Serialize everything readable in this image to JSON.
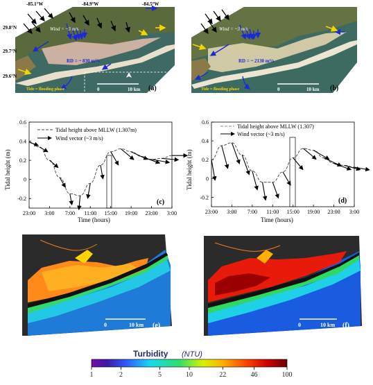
{
  "panels": {
    "a": {
      "label": "(a)",
      "lon_labels": [
        "-85.1°W",
        "-84.9°W",
        "-84.5°W"
      ],
      "lat_labels": [
        "29.8°N",
        "29.7°N",
        "29.6°N"
      ],
      "wind_text": "Wind = ~3 m/s",
      "rd_text": "RD = ~ 830 m³/s",
      "tide_text": "Tide = flooding phase",
      "scale_zero": "0",
      "scale_end": "10 km"
    },
    "b": {
      "label": "(b)",
      "wind_text": "Wind = ~3 m/s",
      "rd_text": "RD = ~ 2130 m³/s",
      "tide_text": "Tide = flooding phase",
      "scale_zero": "0",
      "scale_end": "10 km"
    },
    "c": {
      "label": "(c)"
    },
    "d": {
      "label": "(d)"
    },
    "e": {
      "label": "(e)",
      "scale_zero": "0",
      "scale_end": "10 km"
    },
    "f": {
      "label": "(f)",
      "scale_zero": "0",
      "scale_end": "10 km"
    }
  },
  "colorbar": {
    "title": "Turbidity",
    "unit": "(NTU)",
    "ticks": [
      "1",
      "2",
      "5",
      "10",
      "22",
      "46",
      "100"
    ],
    "scale": "log"
  },
  "chart_data": [
    {
      "type": "line",
      "panel": "c",
      "ylabel": "Tidal height (m)",
      "xlabel": "Time (hours)",
      "ylim": [
        -0.3,
        0.6
      ],
      "yticks": [
        "0.6",
        "0.4",
        "0.2",
        "0",
        "-0.2"
      ],
      "xticks": [
        "23:00",
        "3:00",
        "7:00",
        "11:00",
        "15:00",
        "19:00",
        "23:00",
        "3:00"
      ],
      "legend": [
        "Tidal height above MLLW (1.307m)",
        "Wind vector (~3 m/s)"
      ],
      "x": [
        0,
        2,
        4,
        6,
        8,
        10,
        12,
        14,
        16,
        18,
        20,
        22,
        24,
        26,
        28
      ],
      "y": [
        0.39,
        0.34,
        0.2,
        0.02,
        -0.15,
        -0.17,
        -0.04,
        0.15,
        0.29,
        0.32,
        0.29,
        0.24,
        0.21,
        0.22,
        0.25
      ],
      "highlight_time": "15:00"
    },
    {
      "type": "line",
      "panel": "d",
      "ylabel": "Tidal height (m)",
      "xlabel": "Time (hours)",
      "ylim": [
        -0.3,
        0.6
      ],
      "yticks": [
        "0.6",
        "0.4",
        "0.2",
        "0",
        "-0.2"
      ],
      "xticks": [
        "23:00",
        "3:00",
        "7:00",
        "11:00",
        "15:00",
        "19:00",
        "23:00",
        "3:00"
      ],
      "legend": [
        "Tidal height above MLLW (1.307)",
        "Wind vector (~3 m/s)"
      ],
      "x": [
        0,
        2,
        4,
        6,
        8,
        10,
        12,
        14,
        16,
        18,
        20,
        22,
        24,
        26,
        28
      ],
      "y": [
        0.2,
        0.35,
        0.38,
        0.25,
        0.08,
        -0.04,
        -0.04,
        0.07,
        0.22,
        0.32,
        0.3,
        0.22,
        0.16,
        0.14,
        0.12
      ],
      "highlight_time": "15:00"
    }
  ]
}
